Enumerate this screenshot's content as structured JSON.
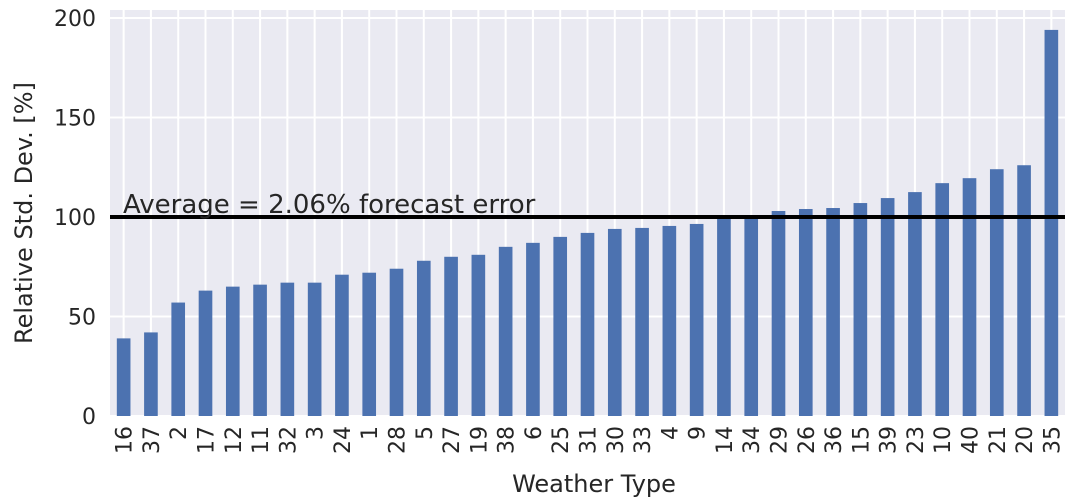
{
  "chart_data": {
    "type": "bar",
    "x_label": "Weather Type",
    "y_label": "Relative Std. Dev. [%]",
    "categories": [
      "16",
      "37",
      "2",
      "17",
      "12",
      "11",
      "32",
      "3",
      "24",
      "1",
      "28",
      "5",
      "27",
      "19",
      "38",
      "6",
      "25",
      "31",
      "30",
      "33",
      "4",
      "9",
      "14",
      "34",
      "29",
      "26",
      "36",
      "15",
      "39",
      "23",
      "10",
      "40",
      "21",
      "20",
      "35"
    ],
    "values": [
      39,
      42,
      57,
      63,
      65,
      66,
      67,
      67,
      71,
      72,
      74,
      78,
      80,
      81,
      85,
      87,
      90,
      92,
      94,
      94.5,
      95.5,
      96.5,
      100,
      100.5,
      103,
      104,
      104.5,
      107,
      109.5,
      112.5,
      117,
      119.5,
      124,
      126,
      194
    ],
    "color": "#4c72b0",
    "ylim": [
      0,
      204
    ],
    "yticks": [
      0,
      50,
      100,
      150,
      200
    ],
    "grid": true,
    "reference_line": {
      "value": 100,
      "label": "Average = 2.06% forecast error",
      "color": "#000000"
    }
  }
}
